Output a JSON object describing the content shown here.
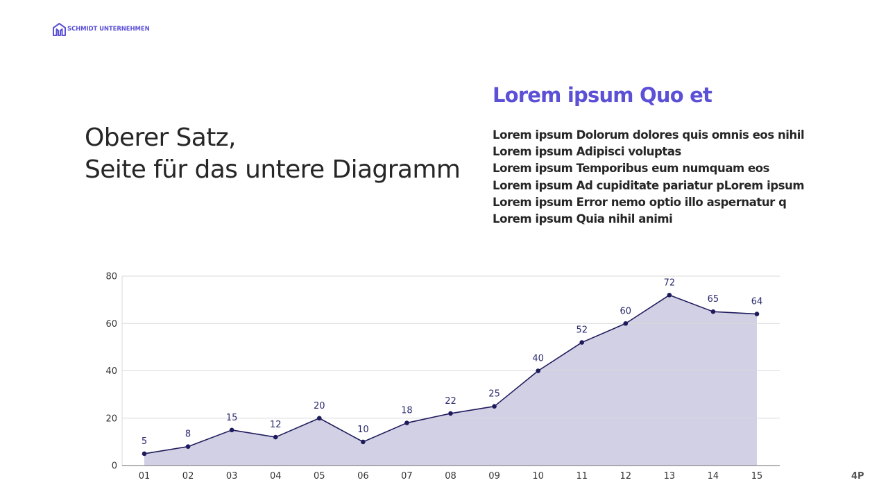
{
  "brand": {
    "name": "SCHMIDT UNTERNEHMEN",
    "logo_icon": "house-logo-icon",
    "accent_color": "#5b50d6"
  },
  "left": {
    "title_lines": [
      "Oberer Satz,",
      "Seite für das untere Diagramm"
    ]
  },
  "right": {
    "heading": "Lorem ipsum Quo et",
    "lines": [
      "Lorem ipsum Dolorum dolores quis omnis eos nihil",
      "Lorem ipsum Adipisci voluptas",
      "Lorem ipsum Temporibus eum numquam eos",
      "Lorem ipsum Ad cupiditate pariatur pLorem ipsum",
      "Lorem ipsum Error nemo optio illo aspernatur q",
      "Lorem ipsum Quia nihil animi"
    ]
  },
  "footer": {
    "page_number": "4P"
  },
  "chart_data": {
    "type": "area",
    "title": "",
    "xlabel": "",
    "ylabel": "",
    "categories": [
      "01",
      "02",
      "03",
      "04",
      "05",
      "06",
      "07",
      "08",
      "09",
      "10",
      "11",
      "12",
      "13",
      "14",
      "15"
    ],
    "values": [
      5,
      8,
      15,
      12,
      20,
      10,
      18,
      22,
      25,
      40,
      52,
      60,
      72,
      65,
      64
    ],
    "ylim": [
      0,
      80
    ],
    "yticks": [
      0,
      20,
      40,
      60,
      80
    ],
    "grid": true,
    "legend": null,
    "data_labels": true,
    "colors": {
      "line": "#1e1b5c",
      "fill": "#cfcde3",
      "marker": "#1e1b5c",
      "grid": "#d9d9d9",
      "axis": "#6b6b6b"
    }
  }
}
